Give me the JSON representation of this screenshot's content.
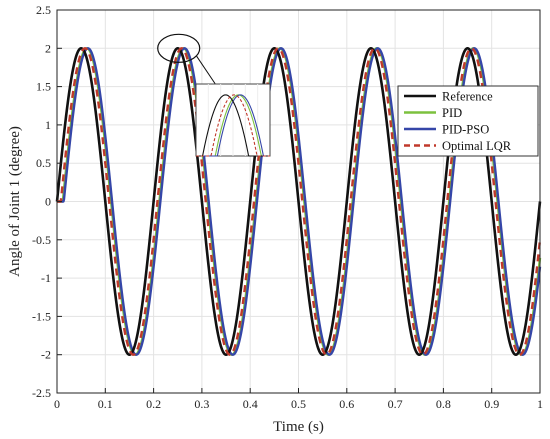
{
  "chart_data": {
    "type": "line",
    "title": "",
    "xlabel": "Time (s)",
    "ylabel": "Angle of Joint 1 (degree)",
    "xlim": [
      0,
      1
    ],
    "ylim": [
      -2.5,
      2.5
    ],
    "xticks": [
      "0",
      "0.1",
      "0.2",
      "0.3",
      "0.4",
      "0.5",
      "0.6",
      "0.7",
      "0.8",
      "0.9",
      "1"
    ],
    "yticks": [
      "-2.5",
      "-2",
      "-1.5",
      "-1",
      "-0.5",
      "0",
      "0.5",
      "1",
      "1.5",
      "2",
      "2.5"
    ],
    "grid": true,
    "legend_position": "top-right",
    "signal": {
      "form": "sine",
      "amplitude": 2,
      "frequency_hz": 5
    },
    "series": [
      {
        "name": "Reference",
        "color": "#111111",
        "style": "solid",
        "delay_s": 0.0
      },
      {
        "name": "PID",
        "color": "#7cc13e",
        "style": "solid",
        "delay_s": 0.012
      },
      {
        "name": "PID-PSO",
        "color": "#3546a8",
        "style": "solid",
        "delay_s": 0.014
      },
      {
        "name": "Optimal LQR",
        "color": "#c0392b",
        "style": "dashed",
        "delay_s": 0.008
      }
    ],
    "annotation": {
      "type": "zoom-inset",
      "region": "first peak near t=0.25 s"
    }
  }
}
